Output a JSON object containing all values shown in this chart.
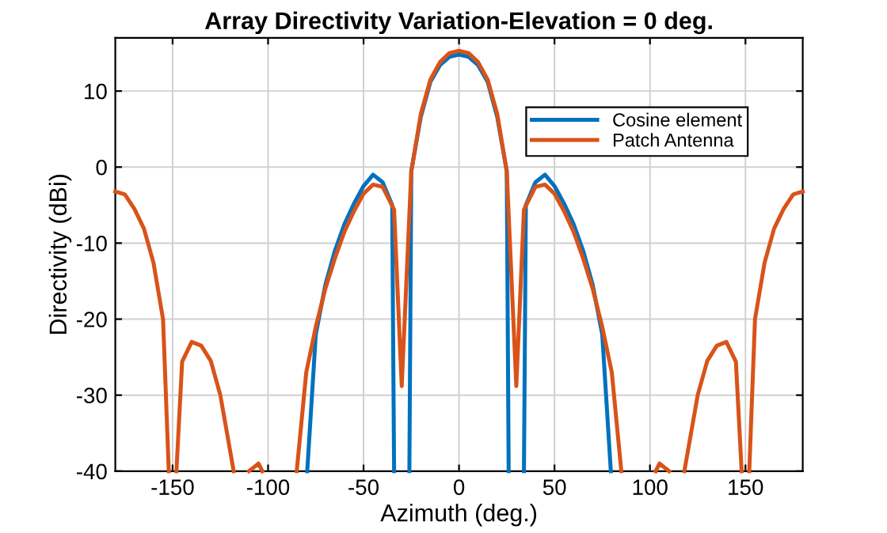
{
  "chart_data": {
    "type": "line",
    "title": "Array Directivity Variation-Elevation = 0 deg.",
    "xlabel": "Azimuth (deg.)",
    "ylabel": "Directivity (dBi)",
    "series": [
      {
        "name": "Cosine element",
        "color": "#0072bd",
        "x": [
          -79.5,
          -75,
          -70,
          -65,
          -60,
          -55,
          -50,
          -45,
          -40,
          -35,
          -34,
          -30,
          -26,
          -25,
          -20,
          -15,
          -10,
          -5,
          0,
          5,
          10,
          15,
          20,
          25,
          26,
          30,
          34,
          35,
          40,
          45,
          50,
          55,
          60,
          65,
          70,
          75,
          79.5
        ],
        "values": [
          -40,
          -22,
          -15.5,
          -11,
          -7.5,
          -4.8,
          -2.5,
          -1.0,
          -2.0,
          -5.0,
          -40,
          null,
          -40,
          -0.5,
          6.6,
          11.2,
          13.4,
          14.5,
          14.8,
          14.5,
          13.4,
          11.2,
          6.6,
          -0.5,
          -40,
          null,
          -40,
          -5.0,
          -2.0,
          -1.0,
          -2.5,
          -4.8,
          -7.5,
          -11,
          -15.5,
          -22,
          -40
        ]
      },
      {
        "name": "Patch Antenna",
        "color": "#d95319",
        "x": [
          -180,
          -175,
          -170,
          -165,
          -160,
          -155,
          -152,
          -150,
          -148,
          -145,
          -140,
          -135,
          -130,
          -125,
          -118,
          -114,
          -110,
          -105,
          -103,
          -95,
          -85,
          -80,
          -75,
          -70,
          -65,
          -60,
          -55,
          -50,
          -45,
          -40,
          -34,
          -30,
          -25,
          -20,
          -15,
          -10,
          -5,
          0,
          5,
          10,
          15,
          20,
          25,
          30,
          34,
          40,
          45,
          50,
          55,
          60,
          65,
          70,
          75,
          80,
          85,
          95,
          103,
          105,
          110,
          114,
          118,
          125,
          130,
          135,
          140,
          145,
          148,
          150,
          152,
          155,
          160,
          165,
          170,
          175,
          180
        ],
        "values": [
          -3.2,
          -3.6,
          -5.5,
          -8.1,
          -12.6,
          -20,
          -40,
          null,
          -40,
          -25.6,
          -23,
          -23.5,
          -25.5,
          -30,
          -40,
          null,
          -40,
          -39,
          -40,
          null,
          -40,
          -27,
          -21,
          -16,
          -12,
          -8.5,
          -5.8,
          -3.5,
          -2.3,
          -2.6,
          -5.6,
          -28.8,
          -0.6,
          7.0,
          11.5,
          13.8,
          15.0,
          15.3,
          15.0,
          13.8,
          11.5,
          7.0,
          -0.6,
          -28.8,
          -5.6,
          -2.6,
          -2.3,
          -3.5,
          -5.8,
          -8.5,
          -12,
          -16,
          -21,
          -27,
          -40,
          null,
          -40,
          -39,
          -40,
          null,
          -40,
          -30,
          -25.5,
          -23.5,
          -23,
          -25.6,
          -40,
          null,
          -40,
          -20,
          -12.6,
          -8.1,
          -5.5,
          -3.6,
          -3.2
        ]
      }
    ],
    "xlim": [
      -180,
      180
    ],
    "ylim": [
      -40,
      17
    ],
    "xticks": [
      -150,
      -100,
      -50,
      0,
      50,
      100,
      150
    ],
    "yticks": [
      -40,
      -30,
      -20,
      -10,
      0,
      10
    ],
    "grid": true,
    "legend": "top right",
    "marker": "none",
    "line_style": "solid"
  }
}
